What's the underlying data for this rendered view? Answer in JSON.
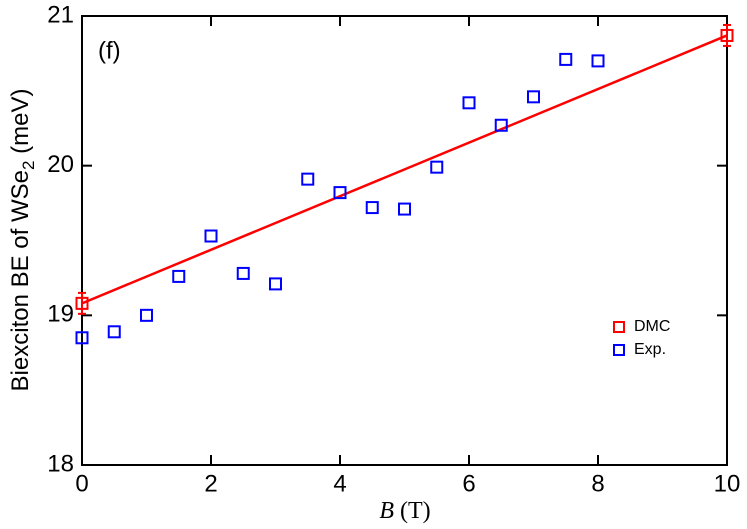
{
  "chart_data": {
    "type": "scatter",
    "annotation": "(f)",
    "xlabel": {
      "symbol": "B",
      "unit": "(T)"
    },
    "ylabel": {
      "text": "Biexciton BE of WSe",
      "subscript": "2",
      "unit": "(meV)"
    },
    "xlim": [
      0,
      10
    ],
    "xticks": [
      0,
      2,
      4,
      6,
      8,
      10
    ],
    "ylim": [
      18,
      21
    ],
    "yticks": [
      18,
      19,
      20,
      21
    ],
    "legend": "right",
    "series": [
      {
        "name": "DMC",
        "color": "#ff0000",
        "x": [
          0,
          10
        ],
        "values": [
          19.08,
          20.87
        ],
        "errors": [
          0.07,
          0.07
        ]
      },
      {
        "name": "Exp.",
        "color": "#0000ff",
        "x": [
          0,
          0.5,
          1,
          1.5,
          2,
          2.5,
          3,
          3.5,
          4,
          4.5,
          5,
          5.5,
          6,
          6.5,
          7,
          7.5,
          8
        ],
        "values": [
          18.85,
          18.89,
          19.0,
          19.26,
          19.53,
          19.28,
          19.21,
          19.91,
          19.82,
          19.72,
          19.71,
          19.99,
          20.42,
          20.27,
          20.46,
          20.71,
          20.7
        ]
      }
    ],
    "fit_line": {
      "color": "#ff0000",
      "x": [
        0,
        10
      ],
      "values": [
        19.08,
        20.87
      ]
    }
  }
}
